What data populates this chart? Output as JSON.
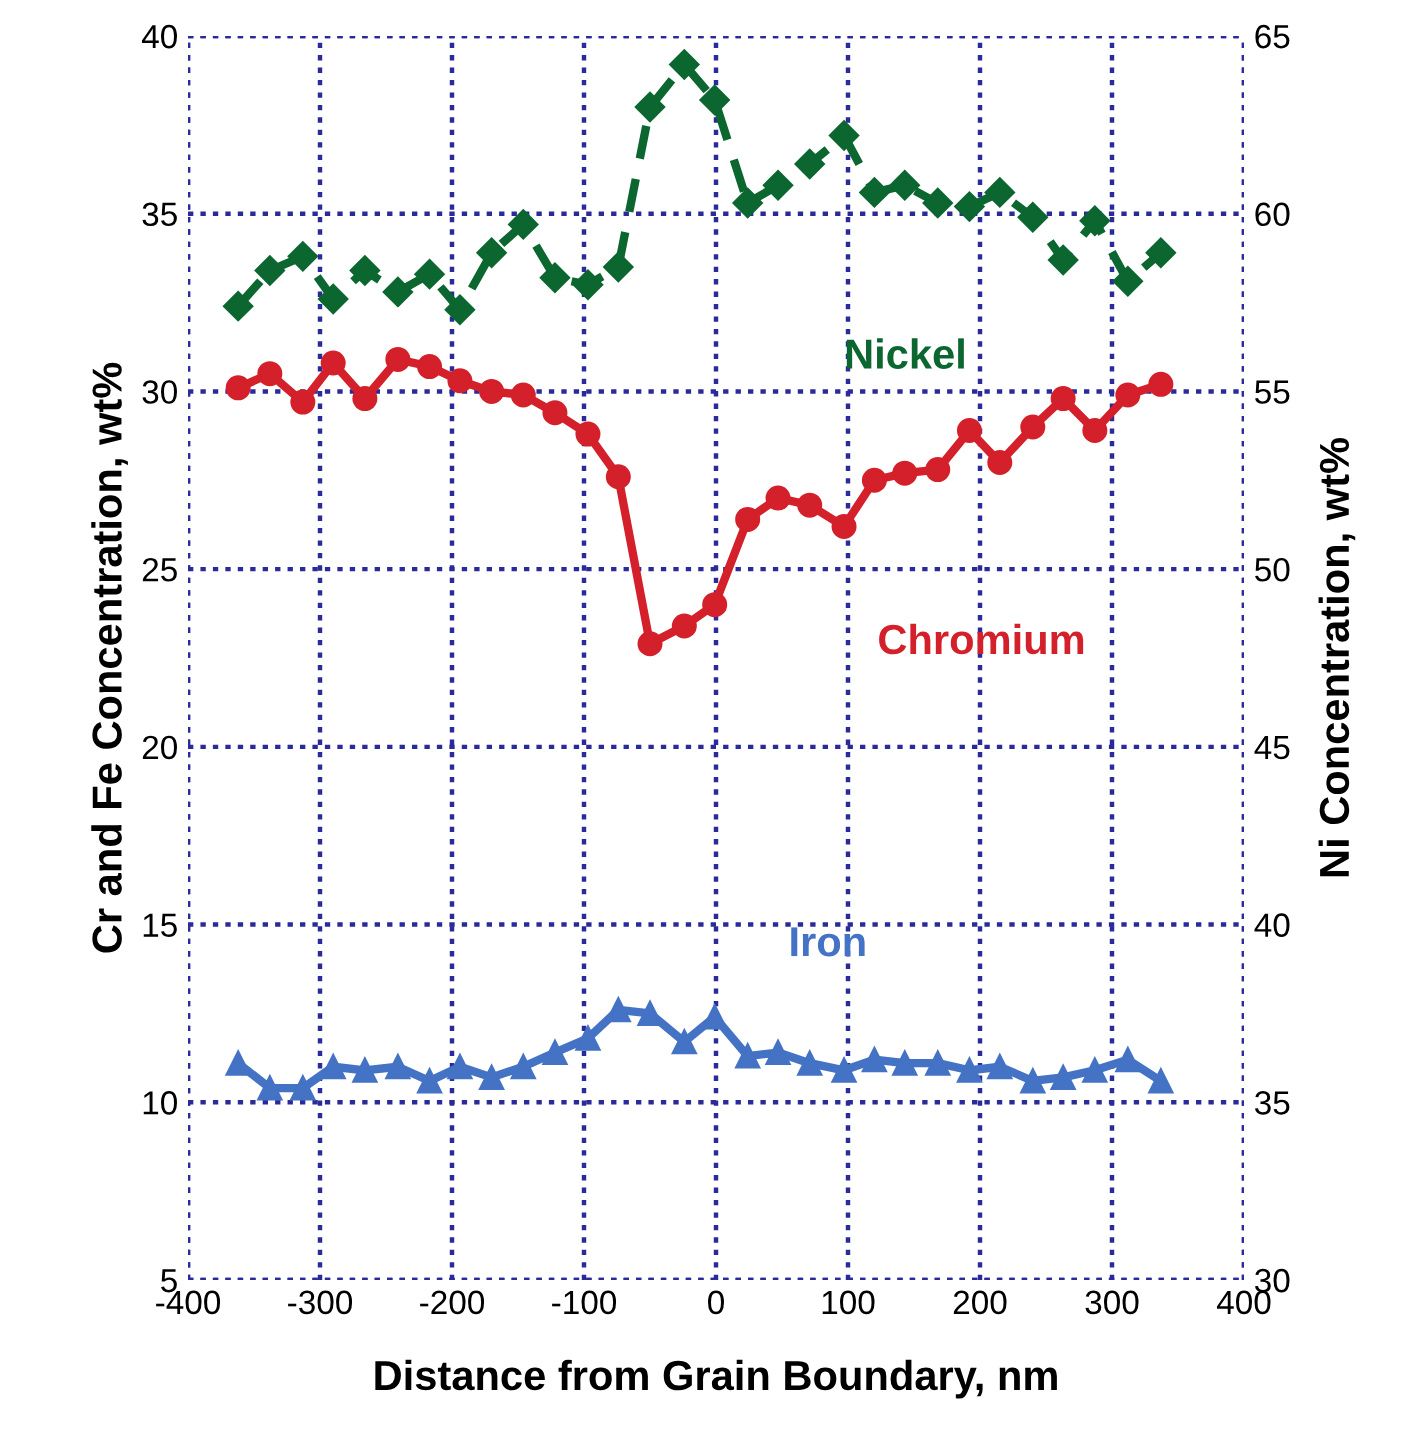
{
  "chart_data": {
    "type": "line",
    "xlabel": "Distance from Grain Boundary, nm",
    "ylabel": "Cr and Fe Concentration, wt%",
    "y2label": "Ni Concentration, wt%",
    "x": [
      -362,
      -338,
      -313,
      -290,
      -266,
      -241,
      -217,
      -194,
      -170,
      -146,
      -122,
      -97,
      -74,
      -50,
      -24,
      -1,
      24,
      47,
      71,
      97,
      120,
      143,
      168,
      192,
      215,
      240,
      263,
      287,
      312,
      337
    ],
    "xlim": [
      -400,
      400
    ],
    "xticks": [
      -400,
      -300,
      -200,
      -100,
      0,
      100,
      200,
      300,
      400
    ],
    "ylim": [
      5,
      40
    ],
    "yticks": [
      5,
      10,
      15,
      20,
      25,
      30,
      35,
      40
    ],
    "y2lim": [
      30,
      65
    ],
    "y2ticks": [
      30,
      35,
      40,
      45,
      50,
      55,
      60,
      65
    ],
    "grid": true,
    "legend": false,
    "series": [
      {
        "name": "Nickel",
        "color": "#0b6630",
        "axis": "y2",
        "marker": "diamond",
        "line_style": "dashed",
        "values": [
          57.4,
          58.4,
          58.8,
          57.6,
          58.4,
          57.8,
          58.3,
          57.3,
          58.9,
          59.7,
          58.2,
          58.0,
          58.5,
          63.0,
          64.2,
          63.2,
          60.3,
          60.8,
          61.4,
          62.2,
          60.6,
          60.8,
          60.3,
          60.2,
          60.6,
          59.9,
          58.7,
          59.8,
          58.1,
          58.9
        ]
      },
      {
        "name": "Chromium",
        "color": "#d4202a",
        "marker": "circle",
        "line_style": "solid",
        "values": [
          30.1,
          30.5,
          29.7,
          30.8,
          29.8,
          30.9,
          30.7,
          30.3,
          30.0,
          29.9,
          29.4,
          28.8,
          27.6,
          22.9,
          23.4,
          24.0,
          26.4,
          27.0,
          26.8,
          26.2,
          27.5,
          27.7,
          27.8,
          28.9,
          28.0,
          29.0,
          29.8,
          28.9,
          29.9,
          30.2
        ]
      },
      {
        "name": "Iron",
        "color": "#4472c4",
        "marker": "triangle",
        "line_style": "solid",
        "values": [
          11.1,
          10.4,
          10.4,
          11.0,
          10.9,
          11.0,
          10.6,
          11.0,
          10.7,
          11.0,
          11.4,
          11.8,
          12.6,
          12.5,
          11.7,
          12.4,
          11.3,
          11.4,
          11.1,
          10.9,
          11.2,
          11.1,
          11.1,
          10.9,
          11.0,
          10.6,
          10.7,
          10.9,
          11.2,
          10.6
        ]
      }
    ]
  }
}
